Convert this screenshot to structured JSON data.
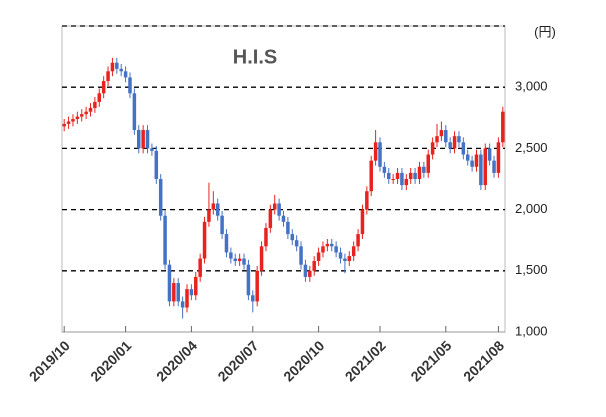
{
  "chart_data": {
    "type": "candlestick",
    "title": "H.I.S",
    "unit_label": "(円)",
    "categories": [
      "2019/10",
      null,
      null,
      null,
      null,
      null,
      null,
      null,
      null,
      null,
      null,
      null,
      null,
      null,
      "2020/01",
      null,
      null,
      null,
      null,
      null,
      null,
      null,
      null,
      null,
      null,
      null,
      null,
      null,
      null,
      "2020/04",
      null,
      null,
      null,
      null,
      null,
      null,
      null,
      null,
      null,
      null,
      null,
      null,
      null,
      "2020/07",
      null,
      null,
      null,
      null,
      null,
      null,
      null,
      null,
      null,
      null,
      null,
      null,
      null,
      null,
      "2020/10",
      null,
      null,
      null,
      null,
      null,
      null,
      null,
      null,
      null,
      null,
      null,
      null,
      null,
      "2021/02",
      null,
      null,
      null,
      null,
      null,
      null,
      null,
      null,
      null,
      null,
      null,
      null,
      null,
      null,
      "2021/05",
      null,
      null,
      null,
      null,
      null,
      null,
      null,
      null,
      null,
      null,
      null,
      "2021/08",
      null
    ],
    "open": [
      2680,
      2700,
      2720,
      2740,
      2760,
      2780,
      2800,
      2830,
      2880,
      2950,
      3050,
      3130,
      3200,
      3150,
      3130,
      3080,
      2950,
      2650,
      2500,
      2650,
      2500,
      2480,
      2250,
      1950,
      1550,
      1250,
      1400,
      1250,
      1200,
      1350,
      1300,
      1450,
      1600,
      1900,
      2000,
      2050,
      1950,
      1800,
      1650,
      1600,
      1580,
      1600,
      1550,
      1300,
      1250,
      1500,
      1700,
      1850,
      2000,
      2050,
      1950,
      1900,
      1800,
      1750,
      1700,
      1550,
      1450,
      1500,
      1580,
      1650,
      1700,
      1720,
      1700,
      1650,
      1600,
      1580,
      1620,
      1700,
      1800,
      2000,
      2150,
      2400,
      2550,
      2350,
      2300,
      2250,
      2250,
      2300,
      2200,
      2250,
      2300,
      2250,
      2350,
      2300,
      2450,
      2550,
      2600,
      2650,
      2550,
      2500,
      2600,
      2550,
      2450,
      2400,
      2350,
      2450,
      2200,
      2500,
      2400,
      2300,
      2550
    ],
    "high": [
      2740,
      2760,
      2780,
      2800,
      2820,
      2840,
      2870,
      2920,
      2990,
      3090,
      3170,
      3240,
      3240,
      3190,
      3170,
      3120,
      2990,
      2690,
      2690,
      2690,
      2540,
      2520,
      2290,
      1990,
      1590,
      1440,
      1440,
      1290,
      1390,
      1390,
      1490,
      1640,
      1940,
      2220,
      2150,
      2090,
      1990,
      1840,
      1690,
      1640,
      1640,
      1640,
      1590,
      1340,
      1540,
      1740,
      1890,
      2040,
      2120,
      2090,
      1990,
      1940,
      1840,
      1790,
      1740,
      1590,
      1540,
      1620,
      1690,
      1740,
      1760,
      1760,
      1740,
      1690,
      1640,
      1660,
      1740,
      1840,
      2040,
      2190,
      2440,
      2650,
      2590,
      2390,
      2340,
      2290,
      2340,
      2340,
      2290,
      2340,
      2340,
      2390,
      2390,
      2490,
      2590,
      2700,
      2720,
      2690,
      2590,
      2640,
      2640,
      2590,
      2490,
      2440,
      2490,
      2490,
      2540,
      2540,
      2440,
      2590,
      2840
    ],
    "low": [
      2640,
      2660,
      2680,
      2700,
      2720,
      2740,
      2760,
      2790,
      2840,
      2910,
      3010,
      3090,
      3110,
      3090,
      3040,
      2910,
      2610,
      2460,
      2460,
      2460,
      2440,
      2210,
      1910,
      1510,
      1210,
      1210,
      1210,
      1110,
      1160,
      1260,
      1260,
      1410,
      1560,
      1860,
      1960,
      1910,
      1760,
      1610,
      1560,
      1540,
      1540,
      1510,
      1260,
      1160,
      1210,
      1460,
      1660,
      1810,
      1960,
      1910,
      1860,
      1760,
      1710,
      1660,
      1510,
      1410,
      1410,
      1460,
      1540,
      1610,
      1660,
      1660,
      1610,
      1560,
      1480,
      1540,
      1580,
      1660,
      1760,
      1960,
      2110,
      2360,
      2310,
      2260,
      2210,
      2210,
      2210,
      2160,
      2160,
      2210,
      2210,
      2210,
      2260,
      2260,
      2410,
      2510,
      2560,
      2510,
      2460,
      2460,
      2510,
      2410,
      2360,
      2310,
      2310,
      2160,
      2160,
      2360,
      2260,
      2260,
      2510
    ],
    "close": [
      2700,
      2720,
      2740,
      2760,
      2780,
      2800,
      2830,
      2880,
      2950,
      3050,
      3130,
      3200,
      3150,
      3130,
      3080,
      2950,
      2650,
      2500,
      2650,
      2500,
      2480,
      2250,
      1950,
      1550,
      1250,
      1400,
      1250,
      1200,
      1350,
      1300,
      1450,
      1600,
      1900,
      2000,
      2050,
      1950,
      1800,
      1650,
      1600,
      1580,
      1600,
      1550,
      1300,
      1250,
      1500,
      1700,
      1850,
      2000,
      2050,
      1950,
      1900,
      1800,
      1750,
      1700,
      1550,
      1450,
      1500,
      1580,
      1650,
      1700,
      1720,
      1700,
      1650,
      1600,
      1580,
      1620,
      1700,
      1800,
      2000,
      2150,
      2400,
      2550,
      2350,
      2300,
      2250,
      2250,
      2300,
      2200,
      2250,
      2300,
      2250,
      2350,
      2300,
      2450,
      2550,
      2600,
      2650,
      2550,
      2500,
      2600,
      2550,
      2450,
      2400,
      2350,
      2450,
      2200,
      2500,
      2400,
      2300,
      2550,
      2800
    ],
    "up_color": "#e8231f",
    "down_color": "#4472c4",
    "ylim": [
      1000,
      3500
    ],
    "yticks": [
      {
        "value": 1000,
        "label": "1,000"
      },
      {
        "value": 1500,
        "label": "1,500"
      },
      {
        "value": 2000,
        "label": "2,000"
      },
      {
        "value": 2500,
        "label": "2,500"
      },
      {
        "value": 3000,
        "label": "3,000"
      }
    ],
    "grid": true
  }
}
